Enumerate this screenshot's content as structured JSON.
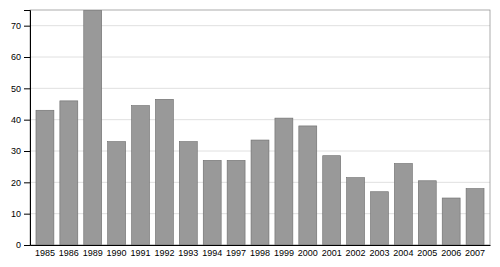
{
  "chart_data": {
    "type": "bar",
    "categories": [
      "1985",
      "1986",
      "1989",
      "1990",
      "1991",
      "1992",
      "1993",
      "1994",
      "1997",
      "1998",
      "1999",
      "2000",
      "2001",
      "2002",
      "2003",
      "2004",
      "2005",
      "2006",
      "2007"
    ],
    "values": [
      43,
      46,
      75,
      33,
      44.5,
      46.5,
      33,
      27,
      27,
      33.5,
      40.5,
      38,
      28.5,
      21.5,
      17,
      26,
      20.5,
      15,
      18
    ],
    "color": "#999999",
    "ylim": [
      0,
      75
    ],
    "yticks": [
      0,
      10,
      20,
      30,
      40,
      50,
      60,
      70
    ],
    "grid": true
  }
}
